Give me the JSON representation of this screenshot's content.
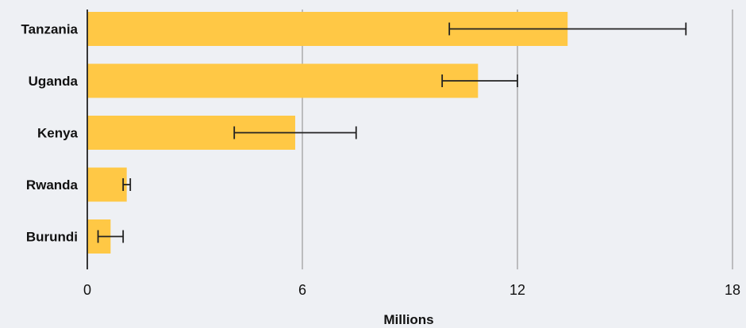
{
  "chart_data": {
    "type": "bar",
    "orientation": "horizontal",
    "categories": [
      "Tanzania",
      "Uganda",
      "Kenya",
      "Rwanda",
      "Burundi"
    ],
    "values": [
      13.4,
      10.9,
      5.8,
      1.1,
      0.65
    ],
    "error_low": [
      10.1,
      9.9,
      4.1,
      1.0,
      0.3
    ],
    "error_high": [
      16.7,
      12.0,
      7.5,
      1.2,
      1.0
    ],
    "xlabel": "Millions",
    "ylabel": "",
    "xlim": [
      0,
      18
    ],
    "xticks": [
      0,
      6,
      12,
      18
    ],
    "xtick_labels": [
      "0",
      "6",
      "12",
      "18"
    ],
    "grid": "vertical",
    "legend": "none",
    "colors": {
      "bar": "#ffc845",
      "error_bar": "#222222",
      "grid": "#9a9a9a",
      "axis": "#222222",
      "background": "#eef0f4"
    }
  }
}
